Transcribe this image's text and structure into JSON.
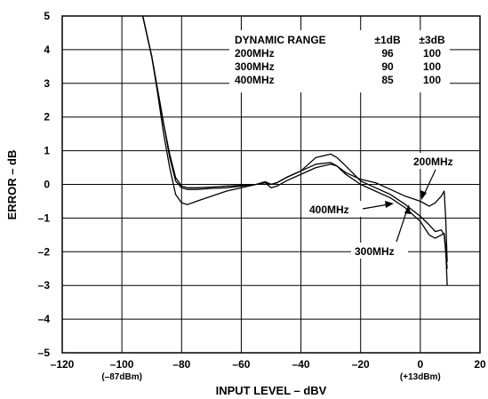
{
  "chart_data": {
    "type": "line",
    "xlabel": "INPUT LEVEL – dBV",
    "ylabel": "ERROR – dB",
    "xlim": [
      -120,
      20
    ],
    "ylim": [
      -5,
      5
    ],
    "grid": true,
    "x_ticks": [
      "–120",
      "–100",
      "–80",
      "–60",
      "–40",
      "–20",
      "0",
      "20"
    ],
    "y_ticks": [
      "5",
      "4",
      "3",
      "2",
      "1",
      "0",
      "–1",
      "–2",
      "–3",
      "–4",
      "–5"
    ],
    "x_sublabels": [
      {
        "x": -100,
        "text": "(–87dBm)"
      },
      {
        "x": 0,
        "text": "(+13dBm)"
      }
    ],
    "table": {
      "headers": [
        "DYNAMIC RANGE",
        "±1dB",
        "±3dB"
      ],
      "rows": [
        [
          "200MHz",
          "96",
          "100"
        ],
        [
          "300MHz",
          "90",
          "100"
        ],
        [
          "400MHz",
          "85",
          "100"
        ]
      ]
    },
    "series": [
      {
        "name": "200MHz",
        "x": [
          -93,
          -90,
          -88,
          -86,
          -84,
          -82,
          -80,
          -78,
          -75,
          -70,
          -65,
          -60,
          -55,
          -52,
          -50,
          -48,
          -45,
          -40,
          -35,
          -30,
          -28,
          -25,
          -20,
          -15,
          -10,
          -5,
          0,
          3,
          5,
          7,
          8,
          8.5,
          9
        ],
        "y": [
          5,
          3.8,
          2.8,
          1.8,
          0.9,
          0.2,
          -0.05,
          -0.1,
          -0.1,
          -0.08,
          -0.05,
          -0.03,
          0.0,
          0.05,
          0.0,
          0.05,
          0.2,
          0.4,
          0.6,
          0.65,
          0.55,
          0.35,
          0.15,
          0.05,
          -0.15,
          -0.35,
          -0.5,
          -0.65,
          -0.55,
          -0.35,
          -0.2,
          -1.0,
          -2.3
        ]
      },
      {
        "name": "300MHz",
        "x": [
          -93,
          -90,
          -88,
          -86,
          -84,
          -82,
          -80,
          -78,
          -75,
          -70,
          -65,
          -60,
          -55,
          -52,
          -50,
          -48,
          -45,
          -40,
          -35,
          -30,
          -28,
          -25,
          -20,
          -15,
          -10,
          -5,
          0,
          3,
          5,
          7,
          8,
          8.5,
          9
        ],
        "y": [
          5,
          3.8,
          2.8,
          1.8,
          0.8,
          0.1,
          -0.1,
          -0.15,
          -0.15,
          -0.12,
          -0.1,
          -0.05,
          0.0,
          0.08,
          0.0,
          0.05,
          0.2,
          0.4,
          0.8,
          0.9,
          0.8,
          0.55,
          0.1,
          -0.1,
          -0.3,
          -0.6,
          -0.95,
          -1.2,
          -1.4,
          -1.35,
          -1.5,
          -2.0,
          -2.5
        ]
      },
      {
        "name": "400MHz",
        "x": [
          -93,
          -90,
          -88,
          -86,
          -84,
          -82,
          -80,
          -78,
          -75,
          -70,
          -65,
          -60,
          -55,
          -52,
          -50,
          -48,
          -45,
          -40,
          -35,
          -30,
          -28,
          -25,
          -20,
          -15,
          -10,
          -5,
          0,
          3,
          5,
          7,
          8,
          8.5,
          9
        ],
        "y": [
          5,
          3.8,
          2.7,
          1.5,
          0.5,
          -0.3,
          -0.55,
          -0.6,
          -0.5,
          -0.35,
          -0.2,
          -0.1,
          0.0,
          0.05,
          -0.1,
          -0.05,
          0.1,
          0.3,
          0.5,
          0.6,
          0.55,
          0.3,
          0.0,
          -0.2,
          -0.4,
          -0.7,
          -1.1,
          -1.5,
          -1.6,
          -1.5,
          -1.45,
          -1.9,
          -3.0
        ]
      }
    ],
    "annotations": [
      {
        "text": "200MHz",
        "series": "200MHz"
      },
      {
        "text": "400MHz",
        "series": "400MHz"
      },
      {
        "text": "300MHz",
        "series": "300MHz"
      }
    ]
  }
}
